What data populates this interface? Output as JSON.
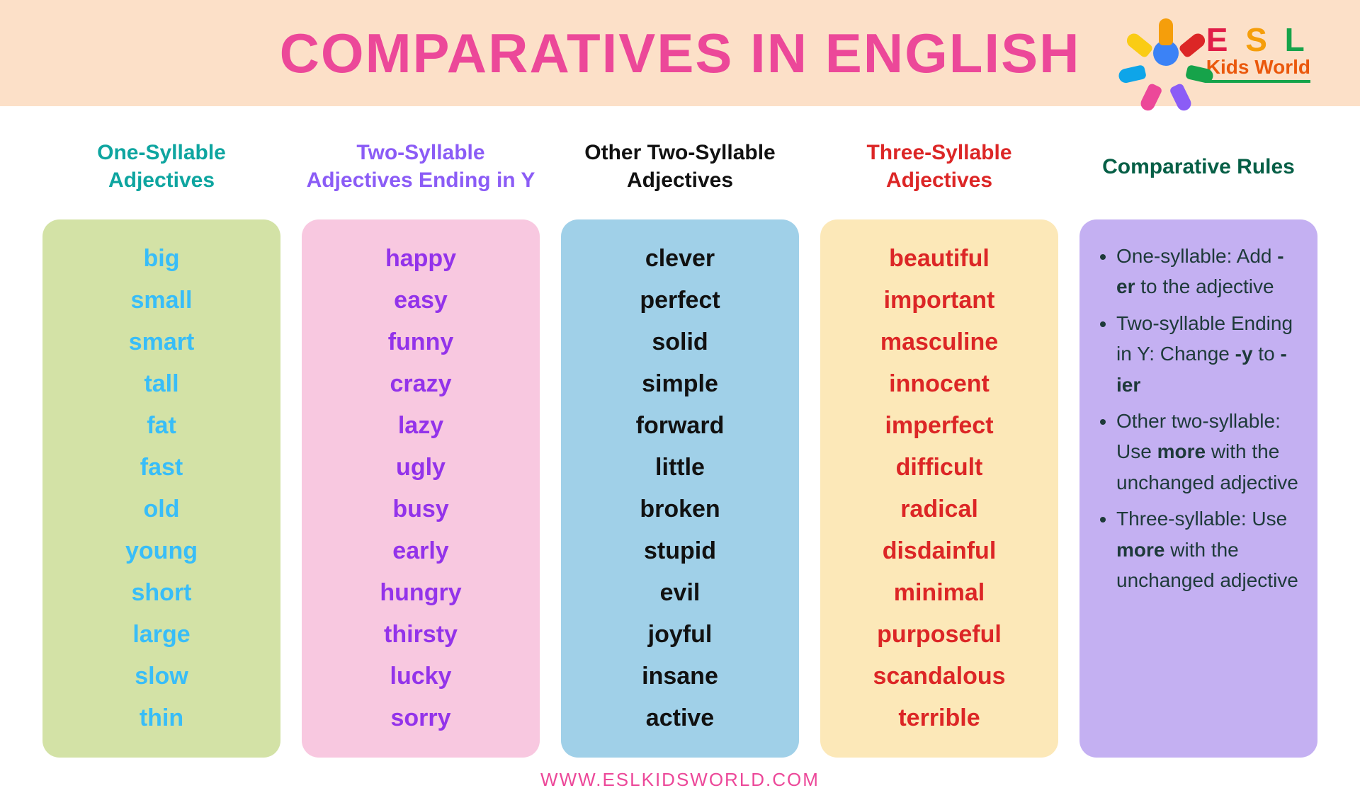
{
  "title": "COMPARATIVES IN ENGLISH",
  "logo": {
    "esl": "E S L",
    "e": "E",
    "s": "S",
    "l": "L",
    "kids": "Kids World"
  },
  "footer": "WWW.ESLKIDSWORLD.COM",
  "header_bg": "#fce0c8",
  "title_color": "#ec4899",
  "footer_color": "#ec4899",
  "columns": [
    {
      "header": "One-Syllable Adjectives",
      "header_color": "#0ea5a0",
      "body_bg": "#d3e2a6",
      "word_color": "#38bdf8",
      "words": [
        "big",
        "small",
        "smart",
        "tall",
        "fat",
        "fast",
        "old",
        "young",
        "short",
        "large",
        "slow",
        "thin"
      ]
    },
    {
      "header": "Two-Syllable Adjectives Ending in Y",
      "header_color": "#8b5cf6",
      "body_bg": "#f8c8e0",
      "word_color": "#9333ea",
      "words": [
        "happy",
        "easy",
        "funny",
        "crazy",
        "lazy",
        "ugly",
        "busy",
        "early",
        "hungry",
        "thirsty",
        "lucky",
        "sorry"
      ]
    },
    {
      "header": "Other Two-Syllable Adjectives",
      "header_color": "#111111",
      "body_bg": "#a0d0e8",
      "word_color": "#111111",
      "words": [
        "clever",
        "perfect",
        "solid",
        "simple",
        "forward",
        "little",
        "broken",
        "stupid",
        "evil",
        "joyful",
        "insane",
        "active"
      ]
    },
    {
      "header": "Three-Syllable Adjectives",
      "header_color": "#dc2626",
      "body_bg": "#fce8b8",
      "word_color": "#dc2626",
      "words": [
        "beautiful",
        "important",
        "masculine",
        "innocent",
        "imperfect",
        "difficult",
        "radical",
        "disdainful",
        "minimal",
        "purposeful",
        "scandalous",
        "terrible"
      ]
    }
  ],
  "rules": {
    "header": "Comparative Rules",
    "header_color": "#065f46",
    "body_bg": "#c4b0f2",
    "text_color": "#1e3a3a",
    "items": [
      {
        "pre": "One-syllable: Add ",
        "bold": "-er",
        "post": " to the adjective"
      },
      {
        "pre": "Two-syllable Ending in Y: Change ",
        "bold": "-y",
        "mid": " to  ",
        "bold2": "-ier",
        "post": ""
      },
      {
        "pre": "Other two-syllable: Use ",
        "bold": "more",
        "post": " with the unchanged adjective"
      },
      {
        "pre": "Three-syllable: Use ",
        "bold": "more",
        "post": " with the unchanged adjective"
      }
    ]
  },
  "logo_petals": [
    {
      "color": "#f59e0b",
      "rot": 0
    },
    {
      "color": "#dc2626",
      "rot": 51
    },
    {
      "color": "#16a34a",
      "rot": 103
    },
    {
      "color": "#8b5cf6",
      "rot": 154
    },
    {
      "color": "#ec4899",
      "rot": 206
    },
    {
      "color": "#0ea5e9",
      "rot": 257
    },
    {
      "color": "#facc15",
      "rot": 309
    }
  ]
}
